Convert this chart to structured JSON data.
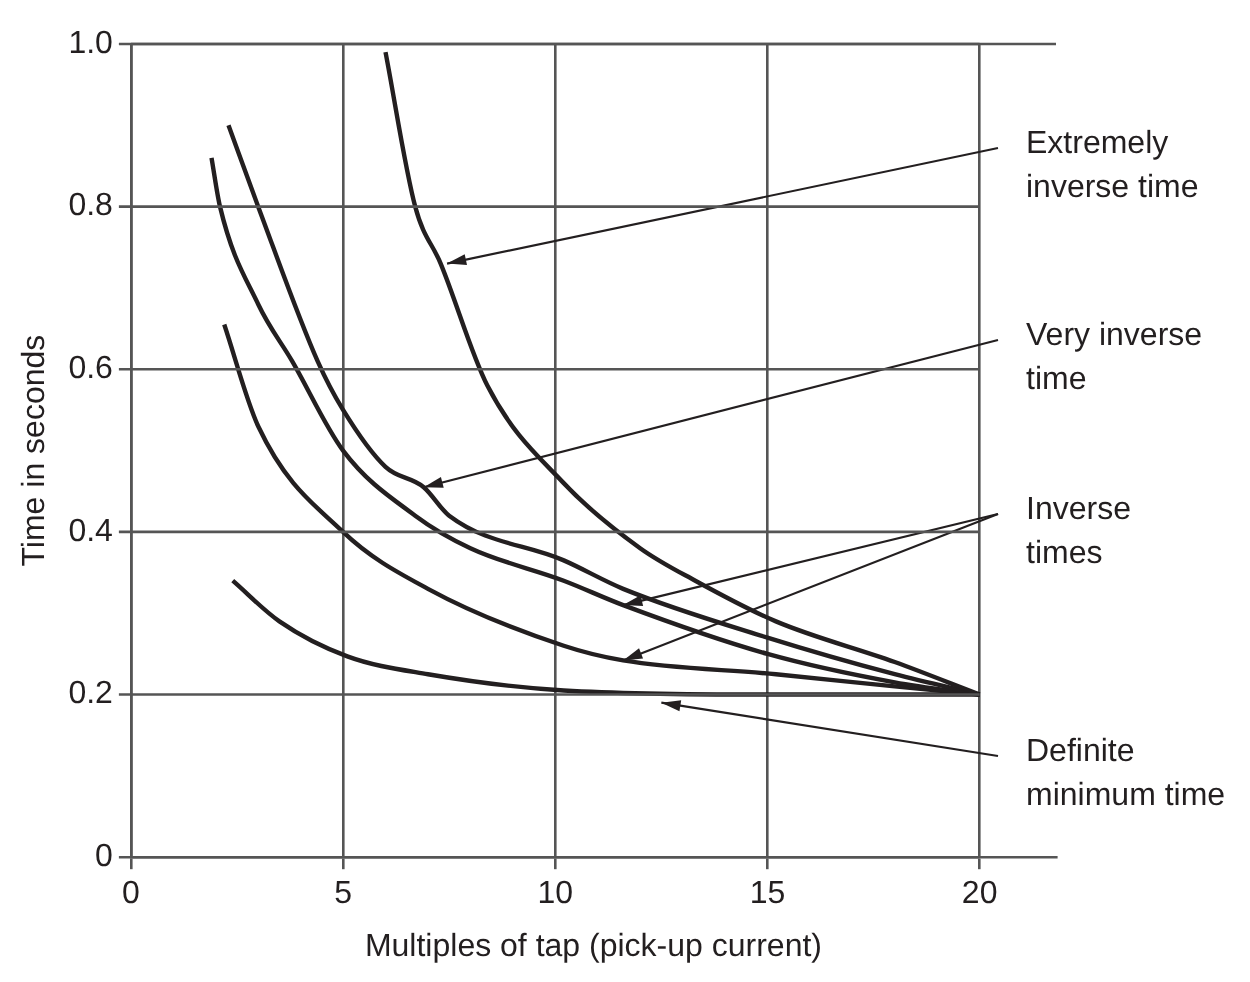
{
  "chart_data": {
    "type": "line",
    "xlabel": "Multiples of tap (pick-up current)",
    "ylabel": "Time in seconds",
    "xlim": [
      0,
      21.8
    ],
    "xticks": [
      0,
      5,
      10,
      15,
      20
    ],
    "ylim": [
      0,
      1
    ],
    "yticks": [
      {
        "value": 0,
        "label": "0"
      },
      {
        "value": 0.2,
        "label": "0.2"
      },
      {
        "value": 0.4,
        "label": "0.4"
      },
      {
        "value": 0.6,
        "label": "0.6"
      },
      {
        "value": 0.8,
        "label": "0.8"
      },
      {
        "value": 1,
        "label": "1.0"
      }
    ],
    "grid": true,
    "legend": false,
    "marker": "none",
    "line_style": "solid",
    "series": [
      {
        "color": "#231f20",
        "x": [
          6.0,
          6.7,
          7.3,
          8.4,
          10.2,
          12,
          13.3,
          15.2,
          18,
          20
        ],
        "values": [
          0.99,
          0.8,
          0.73,
          0.58,
          0.46,
          0.38,
          0.34,
          0.29,
          0.24,
          0.2
        ]
      },
      {
        "color": "#231f20",
        "x": [
          2.3,
          3.0,
          4.4,
          5,
          6,
          6.9,
          7.5,
          10.2,
          11.6,
          15,
          18,
          20
        ],
        "values": [
          0.9,
          0.8,
          0.61,
          0.55,
          0.48,
          0.455,
          0.42,
          0.365,
          0.33,
          0.27,
          0.225,
          0.2
        ]
      },
      {
        "color": "#231f20",
        "x": [
          1.9,
          2.1,
          3.0,
          3.8,
          5,
          6.7,
          8,
          10.2,
          11.6,
          15,
          18,
          20
        ],
        "values": [
          0.86,
          0.8,
          0.68,
          0.61,
          0.5,
          0.42,
          0.38,
          0.34,
          0.31,
          0.25,
          0.215,
          0.2
        ]
      },
      {
        "color": "#231f20",
        "x": [
          2.2,
          3,
          5,
          7,
          10.2,
          11.6,
          15.2,
          18,
          20
        ],
        "values": [
          0.655,
          0.53,
          0.4,
          0.33,
          0.26,
          0.242,
          0.225,
          0.21,
          0.2
        ]
      },
      {
        "color": "#231f20",
        "x": [
          2.4,
          3.5,
          5.1,
          7,
          10.2,
          15,
          20
        ],
        "values": [
          0.34,
          0.29,
          0.247,
          0.225,
          0.205,
          0.2,
          0.2
        ]
      }
    ],
    "annotations": [
      {
        "text": "Extremely\ninverse time",
        "x": 7.45,
        "y": 0.73
      },
      {
        "text": "Very inverse\ntime",
        "x": 6.9,
        "y": 0.455
      },
      "Inverse\ntimes",
      {
        "text": "Definite\nminimum time",
        "x": 12.5,
        "y": 0.19
      }
    ]
  }
}
